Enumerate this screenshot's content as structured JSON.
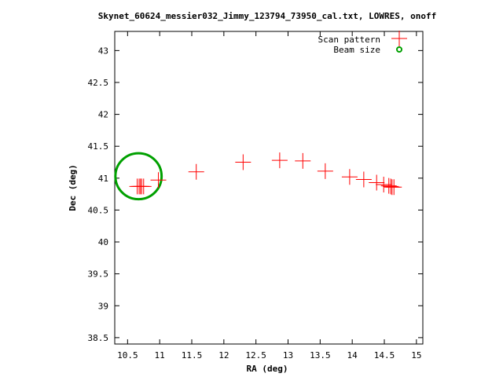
{
  "chart_data": {
    "type": "scatter",
    "title": "Skynet_60624_messier032_Jimmy_123794_73950_cal.txt, LOWRES, onoff",
    "xlabel": "RA (deg)",
    "ylabel": "Dec (deg)",
    "xlim": [
      10.3,
      15.1
    ],
    "ylim": [
      38.4,
      43.3
    ],
    "x_ticks": [
      "10.5",
      "11",
      "11.5",
      "12",
      "12.5",
      "13",
      "13.5",
      "14",
      "14.5",
      "15"
    ],
    "y_ticks": [
      "38.5",
      "39",
      "39.5",
      "40",
      "40.5",
      "41",
      "41.5",
      "42",
      "42.5",
      "43"
    ],
    "legend_position": "top-right",
    "colors": {
      "scan": "#ff0000",
      "beam": "#00a000"
    },
    "series": [
      {
        "name": "Scan pattern",
        "marker": "plus",
        "points": [
          [
            10.65,
            40.87
          ],
          [
            10.68,
            40.87
          ],
          [
            10.7,
            40.87
          ],
          [
            10.72,
            40.87
          ],
          [
            10.75,
            40.87
          ],
          [
            10.98,
            40.97
          ],
          [
            11.57,
            41.1
          ],
          [
            12.3,
            41.25
          ],
          [
            12.87,
            41.28
          ],
          [
            13.23,
            41.27
          ],
          [
            13.58,
            41.11
          ],
          [
            13.96,
            41.02
          ],
          [
            14.18,
            40.98
          ],
          [
            14.38,
            40.93
          ],
          [
            14.49,
            40.9
          ],
          [
            14.57,
            40.88
          ],
          [
            14.6,
            40.87
          ],
          [
            14.62,
            40.86
          ],
          [
            14.65,
            40.86
          ]
        ]
      },
      {
        "name": "Beam size",
        "marker": "circle",
        "center": [
          10.67,
          41.03
        ],
        "radius_deg": 0.36
      }
    ]
  }
}
